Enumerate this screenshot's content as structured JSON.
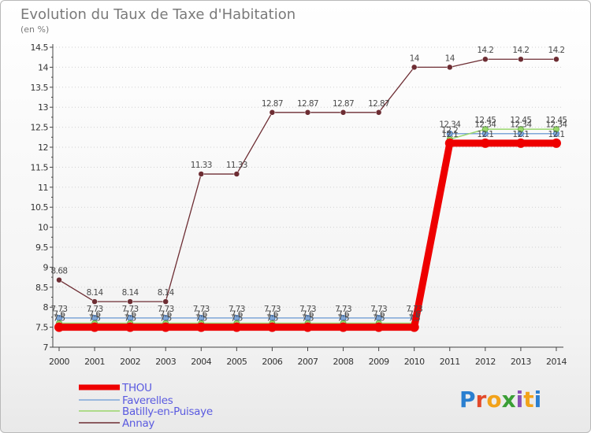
{
  "chart_data": {
    "type": "line",
    "title": "Evolution du Taux de Taxe d'Habitation",
    "ylabel": "(en %)",
    "xlabel": "",
    "ylim": [
      7,
      14.5
    ],
    "y_ticks": [
      "7",
      "7.5",
      "8",
      "8.5",
      "9",
      "9.5",
      "10",
      "10.5",
      "11",
      "11.5",
      "12",
      "12.5",
      "13",
      "13.5",
      "14",
      "14.5"
    ],
    "y_tick_values": [
      7,
      7.5,
      8,
      8.5,
      9,
      9.5,
      10,
      10.5,
      11,
      11.5,
      12,
      12.5,
      13,
      13.5,
      14,
      14.5
    ],
    "categories": [
      "2000",
      "2001",
      "2002",
      "2003",
      "2004",
      "2005",
      "2006",
      "2007",
      "2008",
      "2009",
      "2010",
      "2011",
      "2012",
      "2013",
      "2014"
    ],
    "series": [
      {
        "name": "Annay",
        "color": "#6d2d33",
        "values": [
          8.68,
          8.14,
          8.14,
          8.14,
          11.33,
          11.33,
          12.87,
          12.87,
          12.87,
          12.87,
          14,
          14,
          14.2,
          14.2,
          14.2
        ],
        "labels": [
          "8.68",
          "8.14",
          "8.14",
          "8.14",
          "11.33",
          "11.33",
          "12.87",
          "12.87",
          "12.87",
          "12.87",
          "14",
          "14",
          "14.2",
          "14.2",
          "14.2"
        ]
      },
      {
        "name": "Faverelles",
        "color": "#7ea6d8",
        "values": [
          7.73,
          7.73,
          7.73,
          7.73,
          7.73,
          7.73,
          7.73,
          7.73,
          7.73,
          7.73,
          7.73,
          12.34,
          12.34,
          12.34,
          12.34
        ],
        "labels": [
          "7.73",
          "7.73",
          "7.73",
          "7.73",
          "7.73",
          "7.73",
          "7.73",
          "7.73",
          "7.73",
          "7.73",
          "7.73",
          "12.34",
          "12.34",
          "12.34",
          "12.34"
        ]
      },
      {
        "name": "Batilly-en-Puisaye",
        "color": "#99d66b",
        "values": [
          7.6,
          7.6,
          7.6,
          7.6,
          7.6,
          7.6,
          7.6,
          7.6,
          7.6,
          7.6,
          7.6,
          12.2,
          12.45,
          12.45,
          12.45
        ],
        "labels": [
          "7.6",
          "7.6",
          "7.6",
          "7.6",
          "7.6",
          "7.6",
          "7.6",
          "7.6",
          "7.6",
          "7.6",
          "7.6",
          "12.2",
          "12.45",
          "12.45",
          "12.45"
        ]
      },
      {
        "name": "THOU",
        "color": "#ee0000",
        "values": [
          7.5,
          7.5,
          7.5,
          7.5,
          7.5,
          7.5,
          7.5,
          7.5,
          7.5,
          7.5,
          7.5,
          12.1,
          12.1,
          12.1,
          12.1
        ],
        "labels": [
          "7.5",
          "7.5",
          "7.5",
          "7.5",
          "7.5",
          "7.5",
          "7.5",
          "7.5",
          "7.5",
          "7.5",
          "7.5",
          "12.1",
          "12.1",
          "12.1",
          "12.1"
        ]
      }
    ],
    "legend": [
      "THOU",
      "Faverelles",
      "Batilly-en-Puisaye",
      "Annay"
    ],
    "legend_position": "bottom-left"
  },
  "brand": {
    "text": "Proxiti",
    "letters": [
      "P",
      "r",
      "o",
      "x",
      "i",
      "t",
      "i"
    ],
    "colors": [
      "#2a7fd0",
      "#e2492a",
      "#f2a21a",
      "#3a9e35",
      "#8a4fb4",
      "#f2a21a",
      "#2a7fd0"
    ]
  }
}
